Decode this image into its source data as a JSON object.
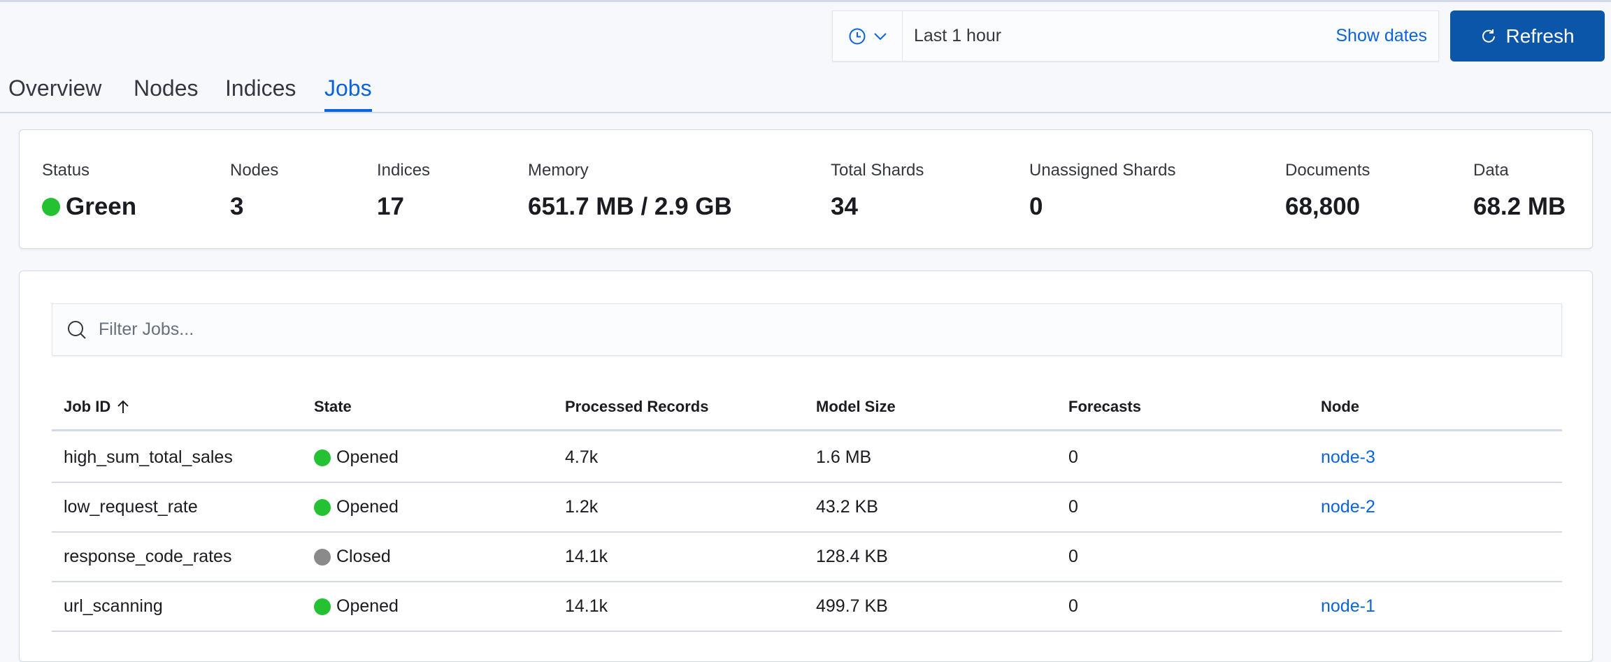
{
  "time_picker": {
    "quick_menu_icon": "clock-icon",
    "range": "Last 1 hour",
    "show_dates": "Show dates"
  },
  "refresh": {
    "label": "Refresh",
    "icon": "refresh-icon"
  },
  "tabs": [
    {
      "label": "Overview"
    },
    {
      "label": "Nodes"
    },
    {
      "label": "Indices"
    },
    {
      "label": "Jobs",
      "active": true
    }
  ],
  "stats": [
    {
      "label": "Status",
      "value": "Green",
      "status_color": "#24c132"
    },
    {
      "label": "Nodes",
      "value": "3"
    },
    {
      "label": "Indices",
      "value": "17"
    },
    {
      "label": "Memory",
      "value": "651.7 MB / 2.9 GB"
    },
    {
      "label": "Total Shards",
      "value": "34"
    },
    {
      "label": "Unassigned Shards",
      "value": "0"
    },
    {
      "label": "Documents",
      "value": "68,800"
    },
    {
      "label": "Data",
      "value": "68.2 MB"
    }
  ],
  "filter": {
    "placeholder": "Filter Jobs..."
  },
  "table": {
    "columns": [
      "Job ID",
      "State",
      "Processed Records",
      "Model Size",
      "Forecasts",
      "Node"
    ],
    "sort": {
      "column": "Job ID",
      "direction": "ascending"
    },
    "rows": [
      {
        "job_id": "high_sum_total_sales",
        "state": "Opened",
        "state_color": "#24c132",
        "processed": "4.7k",
        "model_size": "1.6 MB",
        "forecasts": "0",
        "node": "node-3"
      },
      {
        "job_id": "low_request_rate",
        "state": "Opened",
        "state_color": "#24c132",
        "processed": "1.2k",
        "model_size": "43.2 KB",
        "forecasts": "0",
        "node": "node-2"
      },
      {
        "job_id": "response_code_rates",
        "state": "Closed",
        "state_color": "#8a8a8a",
        "processed": "14.1k",
        "model_size": "128.4 KB",
        "forecasts": "0",
        "node": ""
      },
      {
        "job_id": "url_scanning",
        "state": "Opened",
        "state_color": "#24c132",
        "processed": "14.1k",
        "model_size": "499.7 KB",
        "forecasts": "0",
        "node": "node-1"
      }
    ]
  }
}
